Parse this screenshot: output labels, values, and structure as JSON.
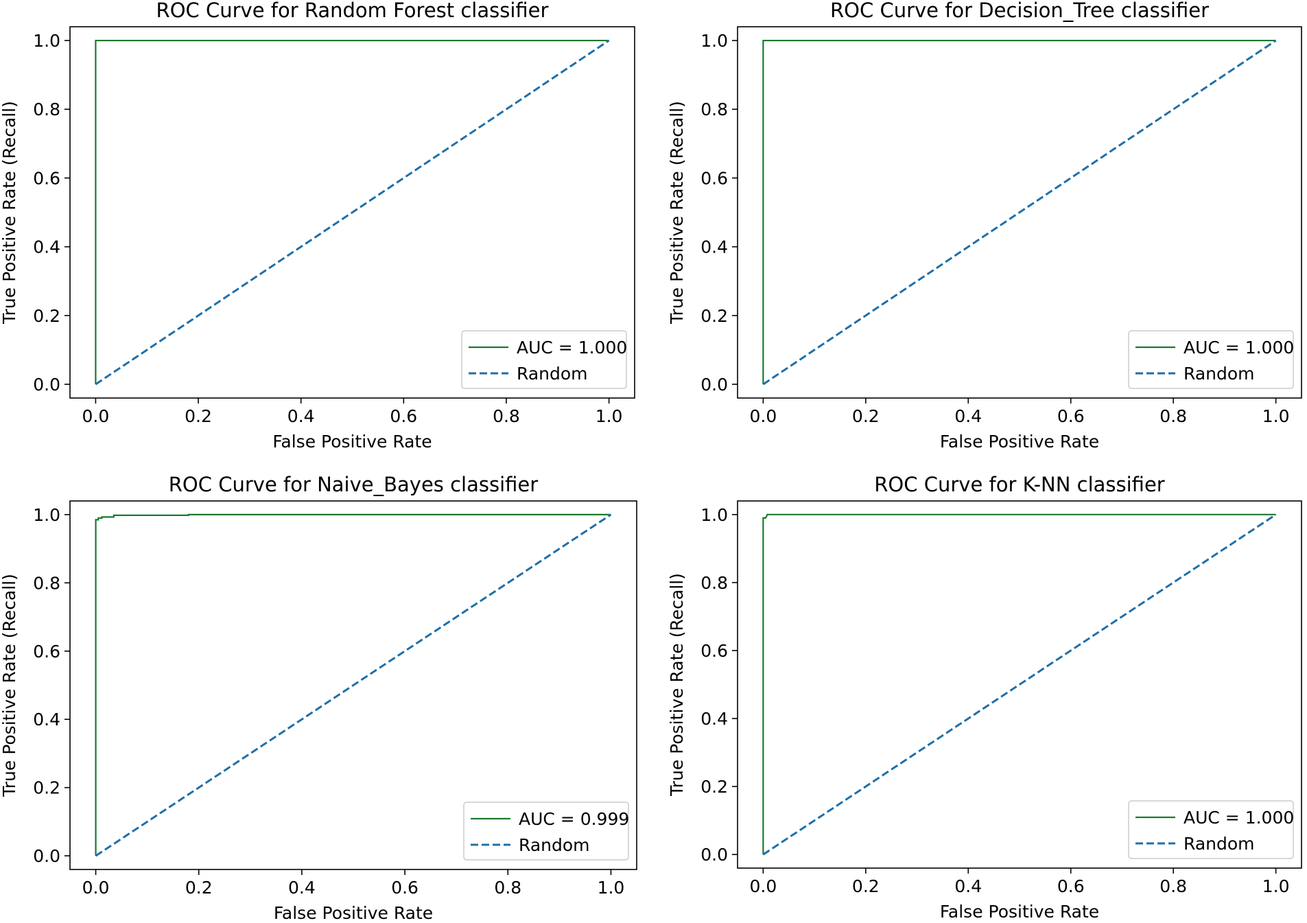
{
  "colors": {
    "roc_curve": "#1a7a2e",
    "random_line": "#1f6fa8",
    "axes": "#000000",
    "legend_border": "#cccccc",
    "background": "#ffffff"
  },
  "chart_data": [
    {
      "type": "line",
      "title": "ROC Curve for Random Forest classifier",
      "xlabel": "False Positive Rate",
      "ylabel": "True Positive Rate (Recall)",
      "xlim": [
        -0.05,
        1.05
      ],
      "ylim": [
        -0.04,
        1.04
      ],
      "xticks": [
        "0.0",
        "0.2",
        "0.4",
        "0.6",
        "0.8",
        "1.0"
      ],
      "yticks": [
        "0.0",
        "0.2",
        "0.4",
        "0.6",
        "0.8",
        "1.0"
      ],
      "legend_position": "lower-right",
      "grid": false,
      "series": [
        {
          "name": "AUC = 1.000",
          "style": "solid",
          "x": [
            0,
            0,
            1
          ],
          "y": [
            0,
            1,
            1
          ]
        },
        {
          "name": "Random",
          "style": "dashed",
          "x": [
            0,
            1
          ],
          "y": [
            0,
            1
          ]
        }
      ]
    },
    {
      "type": "line",
      "title": "ROC Curve for Decision_Tree classifier",
      "xlabel": "False Positive Rate",
      "ylabel": "True Positive Rate (Recall)",
      "xlim": [
        -0.05,
        1.05
      ],
      "ylim": [
        -0.04,
        1.04
      ],
      "xticks": [
        "0.0",
        "0.2",
        "0.4",
        "0.6",
        "0.8",
        "1.0"
      ],
      "yticks": [
        "0.0",
        "0.2",
        "0.4",
        "0.6",
        "0.8",
        "1.0"
      ],
      "legend_position": "lower-right",
      "grid": false,
      "series": [
        {
          "name": "AUC = 1.000",
          "style": "solid",
          "x": [
            0,
            0,
            1
          ],
          "y": [
            0,
            1,
            1
          ]
        },
        {
          "name": "Random",
          "style": "dashed",
          "x": [
            0,
            1
          ],
          "y": [
            0,
            1
          ]
        }
      ]
    },
    {
      "type": "line",
      "title": "ROC Curve for Naive_Bayes classifier",
      "xlabel": "False Positive Rate",
      "ylabel": "True Positive Rate (Recall)",
      "xlim": [
        -0.05,
        1.05
      ],
      "ylim": [
        -0.04,
        1.04
      ],
      "xticks": [
        "0.0",
        "0.2",
        "0.4",
        "0.6",
        "0.8",
        "1.0"
      ],
      "yticks": [
        "0.0",
        "0.2",
        "0.4",
        "0.6",
        "0.8",
        "1.0"
      ],
      "legend_position": "lower-right",
      "grid": false,
      "series": [
        {
          "name": "AUC = 0.999",
          "style": "solid",
          "x": [
            0,
            0,
            0.005,
            0.005,
            0.012,
            0.012,
            0.035,
            0.035,
            0.18,
            0.18,
            1
          ],
          "y": [
            0,
            0.985,
            0.985,
            0.99,
            0.99,
            0.993,
            0.993,
            0.998,
            0.998,
            1.0,
            1.0
          ]
        },
        {
          "name": "Random",
          "style": "dashed",
          "x": [
            0,
            1
          ],
          "y": [
            0,
            1
          ]
        }
      ]
    },
    {
      "type": "line",
      "title": "ROC Curve for K-NN classifier",
      "xlabel": "False Positive Rate",
      "ylabel": "True Positive Rate (Recall)",
      "xlim": [
        -0.05,
        1.05
      ],
      "ylim": [
        -0.04,
        1.04
      ],
      "xticks": [
        "0.0",
        "0.2",
        "0.4",
        "0.6",
        "0.8",
        "1.0"
      ],
      "yticks": [
        "0.0",
        "0.2",
        "0.4",
        "0.6",
        "0.8",
        "1.0"
      ],
      "legend_position": "lower-right",
      "grid": false,
      "series": [
        {
          "name": "AUC = 1.000",
          "style": "solid",
          "x": [
            0,
            0,
            0.005,
            0.008,
            1
          ],
          "y": [
            0,
            0.99,
            0.99,
            1.0,
            1.0
          ]
        },
        {
          "name": "Random",
          "style": "dashed",
          "x": [
            0,
            1
          ],
          "y": [
            0,
            1
          ]
        }
      ]
    }
  ]
}
